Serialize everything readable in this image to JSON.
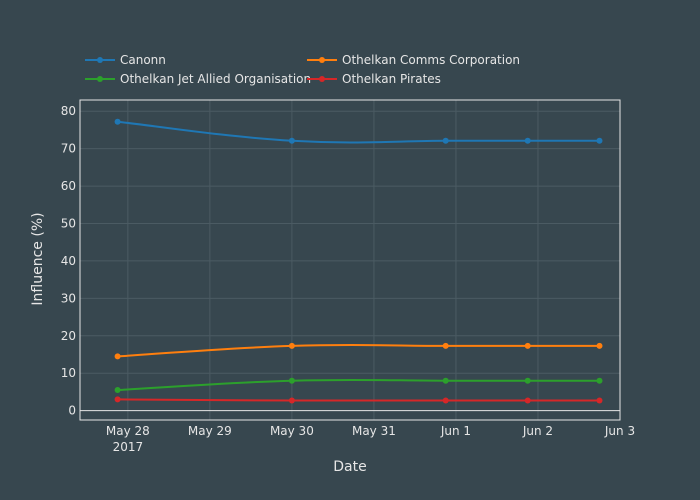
{
  "chart_data": {
    "type": "line",
    "xlabel": "Date",
    "ylabel": "Influence (%)",
    "x_ticks": [
      "May 28",
      "May 29",
      "May 30",
      "May 31",
      "Jun 1",
      "Jun 2",
      "Jun 3"
    ],
    "x_tick_year": "2017",
    "y_ticks": [
      "0",
      "10",
      "20",
      "30",
      "40",
      "50",
      "60",
      "70",
      "80"
    ],
    "ylim": [
      -2.5,
      83
    ],
    "xlim": [
      "2017-05-27 10:00",
      "2017-06-03 00:00"
    ],
    "grid": true,
    "legend_position": "top-left",
    "series": [
      {
        "name": "Canonn",
        "color": "#1f77b4",
        "points": [
          {
            "x": "2017-05-27 21:00",
            "y": 77.2
          },
          {
            "x": "2017-05-30 00:00",
            "y": 72.1
          },
          {
            "x": "2017-05-31 21:00",
            "y": 72.1
          },
          {
            "x": "2017-06-01 21:00",
            "y": 72.1
          },
          {
            "x": "2017-06-02 18:00",
            "y": 72.1
          }
        ]
      },
      {
        "name": "Othelkan Comms Corporation",
        "color": "#ff7f0e",
        "points": [
          {
            "x": "2017-05-27 21:00",
            "y": 14.5
          },
          {
            "x": "2017-05-30 00:00",
            "y": 17.3
          },
          {
            "x": "2017-05-31 21:00",
            "y": 17.3
          },
          {
            "x": "2017-06-01 21:00",
            "y": 17.3
          },
          {
            "x": "2017-06-02 18:00",
            "y": 17.3
          }
        ]
      },
      {
        "name": "Othelkan Jet Allied Organisation",
        "color": "#2ca02c",
        "points": [
          {
            "x": "2017-05-27 21:00",
            "y": 5.5
          },
          {
            "x": "2017-05-30 00:00",
            "y": 8.0
          },
          {
            "x": "2017-05-31 21:00",
            "y": 8.0
          },
          {
            "x": "2017-06-01 21:00",
            "y": 8.0
          },
          {
            "x": "2017-06-02 18:00",
            "y": 8.0
          }
        ]
      },
      {
        "name": "Othelkan Pirates",
        "color": "#d62728",
        "points": [
          {
            "x": "2017-05-27 21:00",
            "y": 3.0
          },
          {
            "x": "2017-05-30 00:00",
            "y": 2.7
          },
          {
            "x": "2017-05-31 21:00",
            "y": 2.7
          },
          {
            "x": "2017-06-01 21:00",
            "y": 2.7
          },
          {
            "x": "2017-06-02 18:00",
            "y": 2.7
          }
        ]
      }
    ]
  }
}
